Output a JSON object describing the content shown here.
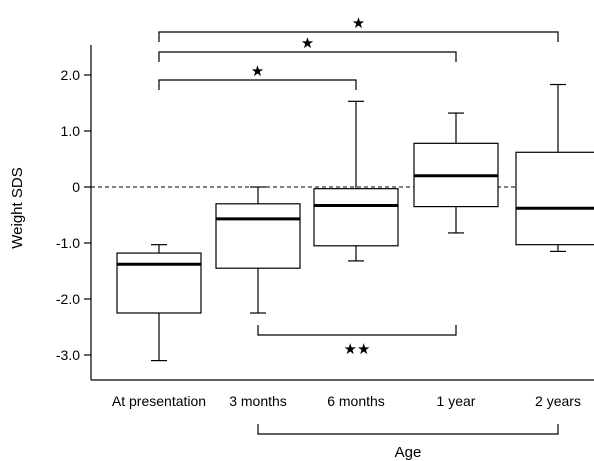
{
  "chart_data": {
    "type": "boxplot",
    "title": "",
    "xlabel": "Age",
    "ylabel": "Weight SDS",
    "ylim": [
      -3.5,
      2.35
    ],
    "yticks": [
      {
        "value": 2.0,
        "label": "2.0"
      },
      {
        "value": 1.0,
        "label": "1.0"
      },
      {
        "value": 0,
        "label": "0"
      },
      {
        "value": -1.0,
        "label": "-1.0"
      },
      {
        "value": -2.0,
        "label": "-2.0"
      },
      {
        "value": -3.0,
        "label": "-3.0"
      }
    ],
    "reference_line": {
      "value": 0,
      "style": "dashed"
    },
    "categories": [
      "At presentation",
      "3 months",
      "6 months",
      "1 year",
      "2 years"
    ],
    "boxes": [
      {
        "category": "At presentation",
        "whisker_low": -3.1,
        "q1": -2.25,
        "median": -1.38,
        "q3": -1.18,
        "whisker_high": -1.03
      },
      {
        "category": "3 months",
        "whisker_low": -2.25,
        "q1": -1.45,
        "median": -0.57,
        "q3": -0.3,
        "whisker_high": 0.0
      },
      {
        "category": "6 months",
        "whisker_low": -1.32,
        "q1": -1.05,
        "median": -0.33,
        "q3": -0.03,
        "whisker_high": 1.53
      },
      {
        "category": "1 year",
        "whisker_low": -0.82,
        "q1": -0.35,
        "median": 0.2,
        "q3": 0.78,
        "whisker_high": 1.32
      },
      {
        "category": "2 years",
        "whisker_low": -1.15,
        "q1": -1.03,
        "median": -0.38,
        "q3": 0.62,
        "whisker_high": 1.83
      }
    ],
    "significance": [
      {
        "from": "At presentation",
        "to": "6 months",
        "marker": "★",
        "side": "top"
      },
      {
        "from": "At presentation",
        "to": "1 year",
        "marker": "★",
        "side": "top"
      },
      {
        "from": "At presentation",
        "to": "2 years",
        "marker": "★",
        "side": "top"
      },
      {
        "from": "3 months",
        "to": "1 year",
        "marker": "★★",
        "side": "bottom"
      }
    ],
    "x_bracket": {
      "from": "3 months",
      "to": "2 years",
      "label": "Age"
    },
    "grid": false,
    "legend": "none"
  }
}
